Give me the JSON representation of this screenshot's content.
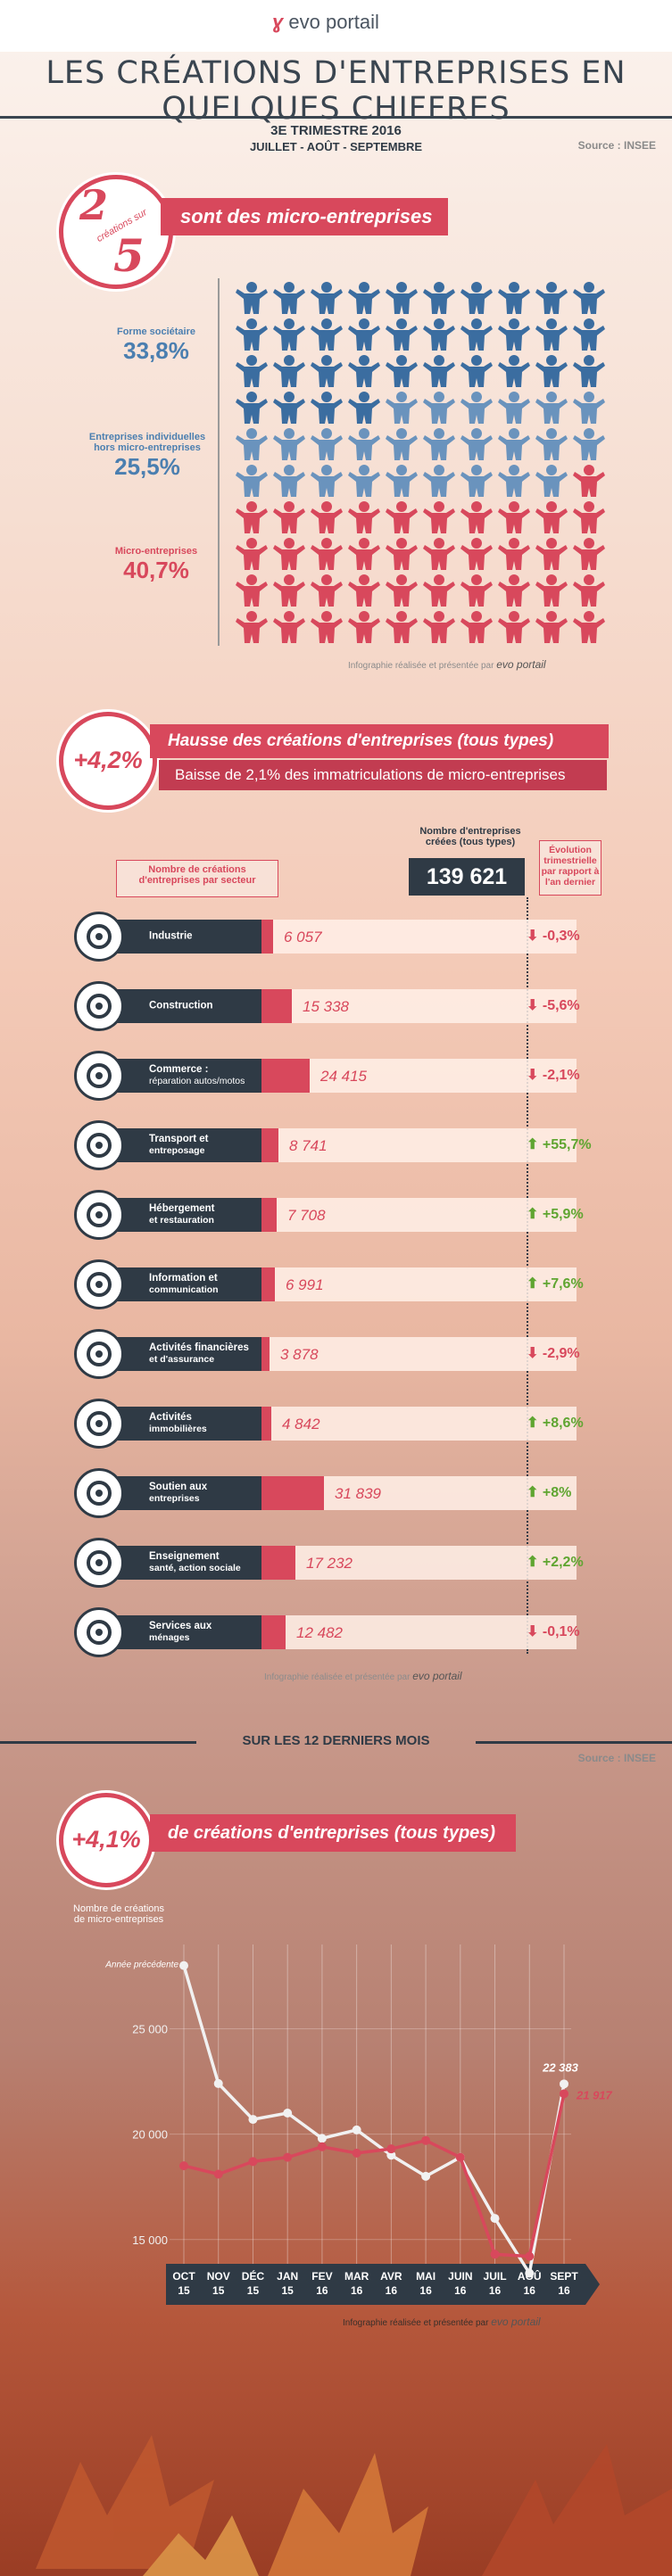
{
  "header": {
    "logo_text": "evo portail",
    "title": "LES CRÉATIONS D'ENTREPRISES EN QUELQUES CHIFFRES",
    "period_title": "3E TRIMESTRE 2016",
    "period_months": "JUILLET - AOÛT - SEPTEMBRE",
    "source": "Source : INSEE"
  },
  "section_forms": {
    "badge_top": "2",
    "badge_middle": "créations sur",
    "badge_bottom": "5",
    "ribbon_text": "sont des micro-entreprises",
    "groups": [
      {
        "label": "Forme sociétaire",
        "value": "33,8%",
        "color": "#3b6da0"
      },
      {
        "label": "Entreprises individuelles hors micro-entreprises",
        "value": "25,5%",
        "color": "#6a93bd"
      },
      {
        "label": "Micro-entreprises",
        "value": "40,7%",
        "color": "#d8485c"
      }
    ],
    "credit": "Infographie réalisée et présentée par",
    "credit_brand": "evo portail"
  },
  "section_sectors": {
    "badge_value": "+4,2%",
    "headline": "Hausse des créations d'entreprises (tous types)",
    "subline": "Baisse de 2,1% des immatriculations de micro-entreprises",
    "col_sector_label": "Nombre de créations d'entreprises par secteur",
    "total_label": "Nombre d'entreprises créées (tous types)",
    "total_value": "139 621",
    "evol_label": "Évolution trimestrielle par rapport à l'an dernier",
    "icon_names": [
      "gears-icon",
      "crane-icon",
      "tools-icon",
      "truck-icon",
      "cutlery-icon",
      "chat-bubble-icon",
      "euro-house-icon",
      "house-icon",
      "handshake-icon",
      "sparkles-hand-icon",
      "bucket-broom-icon"
    ],
    "rows": [
      {
        "label": "Industrie",
        "sub": "",
        "value": "6 057",
        "num": 6057,
        "evol": "-0,3%",
        "dir": "down"
      },
      {
        "label": "Construction",
        "sub": "",
        "value": "15 338",
        "num": 15338,
        "evol": "-5,6%",
        "dir": "down"
      },
      {
        "label": "Commerce :",
        "sub": "réparation autos/motos",
        "value": "24 415",
        "num": 24415,
        "evol": "-2,1%",
        "dir": "down"
      },
      {
        "label": "Transport et",
        "sub": "entreposage",
        "value": "8 741",
        "num": 8741,
        "evol": "+55,7%",
        "dir": "up"
      },
      {
        "label": "Hébergement",
        "sub": "et restauration",
        "value": "7 708",
        "num": 7708,
        "evol": "+5,9%",
        "dir": "up"
      },
      {
        "label": "Information et",
        "sub": "communication",
        "value": "6 991",
        "num": 6991,
        "evol": "+7,6%",
        "dir": "up"
      },
      {
        "label": "Activités financières",
        "sub": "et d'assurance",
        "value": "3 878",
        "num": 3878,
        "evol": "-2,9%",
        "dir": "down"
      },
      {
        "label": "Activités",
        "sub": "immobilières",
        "value": "4 842",
        "num": 4842,
        "evol": "+8,6%",
        "dir": "up"
      },
      {
        "label": "Soutien aux",
        "sub": "entreprises",
        "value": "31 839",
        "num": 31839,
        "evol": "+8%",
        "dir": "up"
      },
      {
        "label": "Enseignement",
        "sub": "santé, action sociale",
        "value": "17 232",
        "num": 17232,
        "evol": "+2,2%",
        "dir": "up"
      },
      {
        "label": "Services aux",
        "sub": "ménages",
        "value": "12 482",
        "num": 12482,
        "evol": "-0,1%",
        "dir": "down"
      }
    ],
    "credit": "Infographie réalisée et présentée par",
    "credit_brand": "evo portail"
  },
  "section_monthly": {
    "heading": "SUR LES 12 DERNIERS MOIS",
    "source": "Source : INSEE",
    "badge_value": "+4,1%",
    "headline": "de créations d'entreprises (tous types)",
    "yaxis_label": "Nombre de créations de micro-entreprises",
    "prev_year_label": "Année précédente",
    "credit": "Infographie réalisée et présentée par",
    "credit_brand": "evo portail"
  },
  "chart_data": {
    "type": "line",
    "x": [
      "OCT 15",
      "NOV 15",
      "DÉC 15",
      "JAN 15",
      "FEV 16",
      "MAR 16",
      "AVR 16",
      "MAI 16",
      "JUIN 16",
      "JUIL 16",
      "AOÛ 16",
      "SEPT 16"
    ],
    "ylabel": "Nombre de créations de micro-entreprises",
    "yticks": [
      "15 000",
      "20 000",
      "25 000"
    ],
    "ylim": [
      13000,
      29000
    ],
    "series": [
      {
        "name": "Année précédente",
        "color": "#f1f1f1",
        "values": [
          28000,
          22400,
          20700,
          21000,
          19800,
          20200,
          19000,
          18000,
          18900,
          16000,
          13400,
          22383
        ]
      },
      {
        "name": "",
        "color": "#d8485c",
        "values": [
          18500,
          18100,
          18700,
          18900,
          19400,
          19100,
          19300,
          19700,
          18900,
          14300,
          14200,
          21917
        ]
      }
    ],
    "data_labels": [
      {
        "series": 0,
        "index": 11,
        "text": "22 383"
      },
      {
        "series": 1,
        "index": 11,
        "text": "21 917"
      }
    ],
    "grid": true
  }
}
